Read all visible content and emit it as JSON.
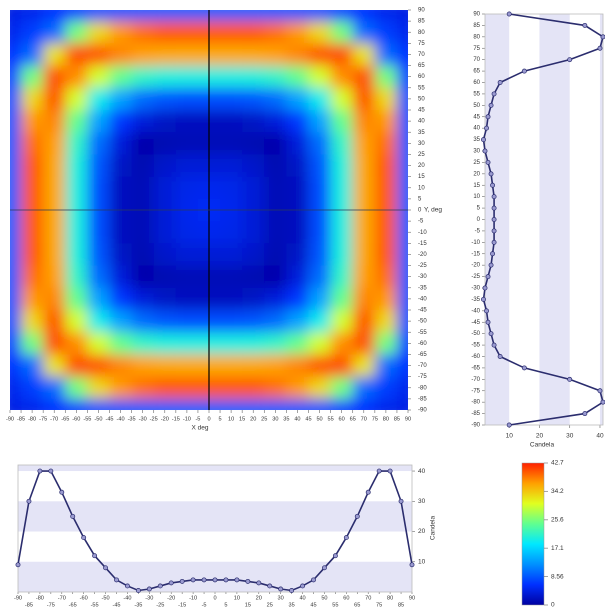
{
  "chart_data": [
    {
      "type": "heatmap",
      "xlabel": "X deg",
      "ylabel": "Y, deg",
      "x": [
        -90,
        -80,
        -70,
        -60,
        -50,
        -40,
        -30,
        -20,
        -10,
        0,
        10,
        20,
        30,
        40,
        50,
        60,
        70,
        80,
        90
      ],
      "y": [
        90,
        80,
        70,
        60,
        50,
        40,
        30,
        20,
        10,
        0,
        -10,
        -20,
        -30,
        -40,
        -50,
        -60,
        -70,
        -80,
        -90
      ],
      "z": [
        [
          4.3,
          4.8,
          6.1,
          7.3,
          8.2,
          8.6,
          8.9,
          9,
          9,
          9,
          9,
          9,
          8.9,
          8.6,
          8.2,
          7.3,
          6.1,
          4.8,
          4.3
        ],
        [
          4.8,
          7,
          9.8,
          25.3,
          33,
          37,
          39,
          40,
          40,
          40,
          40,
          40,
          39,
          37,
          33,
          25.3,
          9.8,
          7,
          4.8
        ],
        [
          6.1,
          9.8,
          32.3,
          40.4,
          40.2,
          37.8,
          36.6,
          36.1,
          36,
          36,
          36,
          36.1,
          36.6,
          37.8,
          40.2,
          40.4,
          32.3,
          9.8,
          6.1
        ],
        [
          7.3,
          25.3,
          40.4,
          37.4,
          29.9,
          24.5,
          21.4,
          20.3,
          20,
          20,
          20,
          20.3,
          21.4,
          24.5,
          29.9,
          37.4,
          40.4,
          25.3,
          7.3
        ],
        [
          8.2,
          33,
          40.2,
          29.9,
          19.4,
          13.4,
          9.8,
          8.4,
          8,
          8,
          8,
          8.4,
          9.8,
          13.4,
          19.4,
          29.9,
          40.2,
          33,
          8.2
        ],
        [
          8.6,
          37,
          37.8,
          24.5,
          13.4,
          6.5,
          3.7,
          2.4,
          2,
          2,
          2,
          2.4,
          3.7,
          6.5,
          13.4,
          24.5,
          37.8,
          37,
          8.6
        ],
        [
          8.9,
          39,
          36.6,
          21.4,
          9.8,
          3.7,
          0.7,
          1.2,
          1.5,
          1.5,
          1.5,
          1.2,
          0.7,
          3.7,
          9.8,
          21.4,
          36.6,
          39,
          8.9
        ],
        [
          9,
          40,
          36.1,
          20.3,
          8.4,
          2.4,
          1.2,
          2.7,
          3.5,
          3.5,
          3.5,
          2.7,
          1.2,
          2.4,
          8.4,
          20.3,
          36.1,
          40,
          9
        ],
        [
          9,
          40,
          36,
          20,
          8,
          2,
          1.5,
          3.5,
          4.7,
          5,
          4.7,
          3.5,
          1.5,
          2,
          8,
          20,
          36,
          40,
          9
        ],
        [
          9,
          40,
          36,
          20,
          8,
          2,
          1.5,
          3.5,
          5,
          5.5,
          5,
          3.5,
          1.5,
          2,
          8,
          20,
          36,
          40,
          9
        ],
        [
          9,
          40,
          36,
          20,
          8,
          2,
          1.5,
          3.5,
          4.7,
          5,
          4.7,
          3.5,
          1.5,
          2,
          8,
          20,
          36,
          40,
          9
        ],
        [
          9,
          40,
          36.1,
          20.3,
          8.4,
          2.4,
          1.2,
          2.7,
          3.5,
          3.5,
          3.5,
          2.7,
          1.2,
          2.4,
          8.4,
          20.3,
          36.1,
          40,
          9
        ],
        [
          8.9,
          39,
          36.6,
          21.4,
          9.8,
          3.7,
          0.7,
          1.2,
          1.5,
          1.5,
          1.5,
          1.2,
          0.7,
          3.7,
          9.8,
          21.4,
          36.6,
          39,
          8.9
        ],
        [
          8.6,
          37,
          37.8,
          24.5,
          13.4,
          6.5,
          3.7,
          2.4,
          2,
          2,
          2,
          2.4,
          3.7,
          6.5,
          13.4,
          24.5,
          37.8,
          37,
          8.6
        ],
        [
          8.2,
          33,
          40.2,
          29.9,
          19.4,
          13.4,
          9.8,
          8.4,
          8,
          8,
          8,
          8.4,
          9.8,
          13.4,
          19.4,
          29.9,
          40.2,
          33,
          8.2
        ],
        [
          7.3,
          25.3,
          40.4,
          37.4,
          29.9,
          24.5,
          21.4,
          20.3,
          20,
          20,
          20,
          20.3,
          21.4,
          24.5,
          29.9,
          37.4,
          40.4,
          25.3,
          7.3
        ],
        [
          6.1,
          9.8,
          32.3,
          40.4,
          40.2,
          37.8,
          36.6,
          36.1,
          36,
          36,
          36,
          36.1,
          36.6,
          37.8,
          40.2,
          40.4,
          32.3,
          9.8,
          6.1
        ],
        [
          4.8,
          7,
          9.8,
          25.3,
          33,
          37,
          39,
          40,
          40,
          40,
          40,
          40,
          39,
          37,
          33,
          25.3,
          9.8,
          7,
          4.8
        ],
        [
          4.3,
          4.8,
          6.1,
          7.3,
          8.2,
          8.6,
          8.9,
          9,
          9,
          9,
          9,
          9,
          8.9,
          8.6,
          8.2,
          7.3,
          6.1,
          4.8,
          4.3
        ]
      ],
      "zlim": [
        0,
        42.7
      ],
      "colorscale": [
        "#0000a0",
        "#0030ff",
        "#0090ff",
        "#00e8ff",
        "#60ff90",
        "#e0ff20",
        "#ffa000",
        "#ff2000"
      ],
      "xlim": [
        -90,
        90
      ],
      "ylim": [
        -90,
        90
      ],
      "xticks": [
        -90,
        -85,
        -80,
        -75,
        -70,
        -65,
        -60,
        -55,
        -50,
        -45,
        -40,
        -35,
        -30,
        -25,
        -20,
        -15,
        -10,
        -5,
        0,
        5,
        10,
        15,
        20,
        25,
        30,
        35,
        40,
        45,
        50,
        55,
        60,
        65,
        70,
        75,
        80,
        85,
        90
      ],
      "yticks": [
        -90,
        -85,
        -80,
        -75,
        -70,
        -65,
        -60,
        -55,
        -50,
        -45,
        -40,
        -35,
        -30,
        -25,
        -20,
        -15,
        -10,
        -5,
        0,
        5,
        10,
        15,
        20,
        25,
        30,
        35,
        40,
        45,
        50,
        55,
        60,
        65,
        70,
        75,
        80,
        85,
        90
      ]
    },
    {
      "type": "line",
      "orientation": "vertical",
      "xlabel": "Candela",
      "color": "#2b2d6e",
      "y": [
        -90,
        -85,
        -80,
        -75,
        -70,
        -65,
        -60,
        -55,
        -50,
        -45,
        -40,
        -35,
        -30,
        -25,
        -20,
        -15,
        -10,
        -5,
        0,
        5,
        10,
        15,
        20,
        25,
        30,
        35,
        40,
        45,
        50,
        55,
        60,
        65,
        70,
        75,
        80,
        85,
        90
      ],
      "values": [
        10,
        35,
        41,
        40,
        30,
        15,
        7,
        5,
        4,
        3,
        2.5,
        1.5,
        2,
        3,
        4,
        4.5,
        5,
        5,
        5,
        5,
        5,
        4.5,
        4,
        3,
        2,
        1.5,
        2.5,
        3,
        4,
        5,
        7,
        15,
        30,
        40,
        41,
        35,
        10
      ],
      "xlim": [
        2,
        41
      ],
      "xticks": [
        10,
        20,
        30,
        40
      ],
      "ylim": [
        -90,
        90
      ],
      "yticks": [
        -90,
        -85,
        -80,
        -75,
        -70,
        -65,
        -60,
        -55,
        -50,
        -45,
        -40,
        -35,
        -30,
        -25,
        -20,
        -15,
        -10,
        -5,
        0,
        5,
        10,
        15,
        20,
        25,
        30,
        35,
        40,
        45,
        50,
        55,
        60,
        65,
        70,
        75,
        80,
        85,
        90
      ]
    },
    {
      "type": "line",
      "orientation": "horizontal",
      "ylabel": "Candela",
      "color": "#2b2d6e",
      "x": [
        -90,
        -85,
        -80,
        -75,
        -70,
        -65,
        -60,
        -55,
        -50,
        -45,
        -40,
        -35,
        -30,
        -25,
        -20,
        -15,
        -10,
        -5,
        0,
        5,
        10,
        15,
        20,
        25,
        30,
        35,
        40,
        45,
        50,
        55,
        60,
        65,
        70,
        75,
        80,
        85,
        90
      ],
      "values": [
        9,
        30,
        40,
        40,
        33,
        25,
        18,
        12,
        8,
        4,
        2,
        0.5,
        1,
        2,
        3,
        3.5,
        4,
        4,
        4,
        4,
        4,
        3.5,
        3,
        2,
        1,
        0.5,
        2,
        4,
        8,
        12,
        18,
        25,
        33,
        40,
        40,
        30,
        9
      ],
      "xlim": [
        -90,
        90
      ],
      "xticks": [
        -90,
        -85,
        -80,
        -75,
        -70,
        -65,
        -60,
        -55,
        -50,
        -45,
        -40,
        -35,
        -30,
        -25,
        -20,
        -15,
        -10,
        -5,
        0,
        5,
        10,
        15,
        20,
        25,
        30,
        35,
        40,
        45,
        50,
        55,
        60,
        65,
        70,
        75,
        80,
        85,
        90
      ],
      "ylim": [
        0,
        42
      ],
      "yticks": [
        10,
        20,
        30,
        40
      ]
    },
    {
      "type": "colorbar",
      "zlim": [
        0,
        42.7
      ],
      "ticks": [
        0,
        8.56,
        17.1,
        25.6,
        34.2,
        42.7
      ]
    }
  ]
}
